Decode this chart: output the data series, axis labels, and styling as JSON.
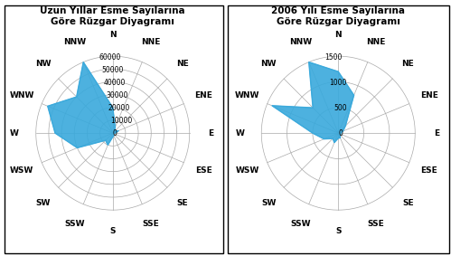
{
  "title1": "Uzun Yıllar Esme Sayılarına\nGöre Rüzgar Diyagramı",
  "title2": "2006 Yılı Esme Sayılarına\nGöre Rüzgar Diyagramı",
  "directions": [
    "N",
    "NNE",
    "NE",
    "ENE",
    "E",
    "ESE",
    "SE",
    "SSE",
    "S",
    "SSW",
    "SW",
    "WSW",
    "W",
    "WNW",
    "NW",
    "NNW"
  ],
  "values1": [
    20000,
    5000,
    2000,
    5000,
    2000,
    500,
    500,
    2000,
    3000,
    10000,
    8000,
    30000,
    45000,
    55000,
    40000,
    60000
  ],
  "values2": [
    1200,
    800,
    200,
    100,
    50,
    50,
    50,
    100,
    100,
    200,
    150,
    300,
    500,
    1400,
    700,
    1500
  ],
  "max1": 60000,
  "max2": 1500,
  "rticks1": [
    10000,
    20000,
    30000,
    40000,
    50000,
    60000
  ],
  "rticks2": [
    500,
    1000,
    1500
  ],
  "fill_color": "#39a9dc",
  "grid_color": "#aaaaaa",
  "label_color": "#000000",
  "bg_color": "#ffffff",
  "title_fontsize": 7.5,
  "dir_label_fontsize": 6.5,
  "tick_label_fontsize": 5.5,
  "border_color": "#000000"
}
